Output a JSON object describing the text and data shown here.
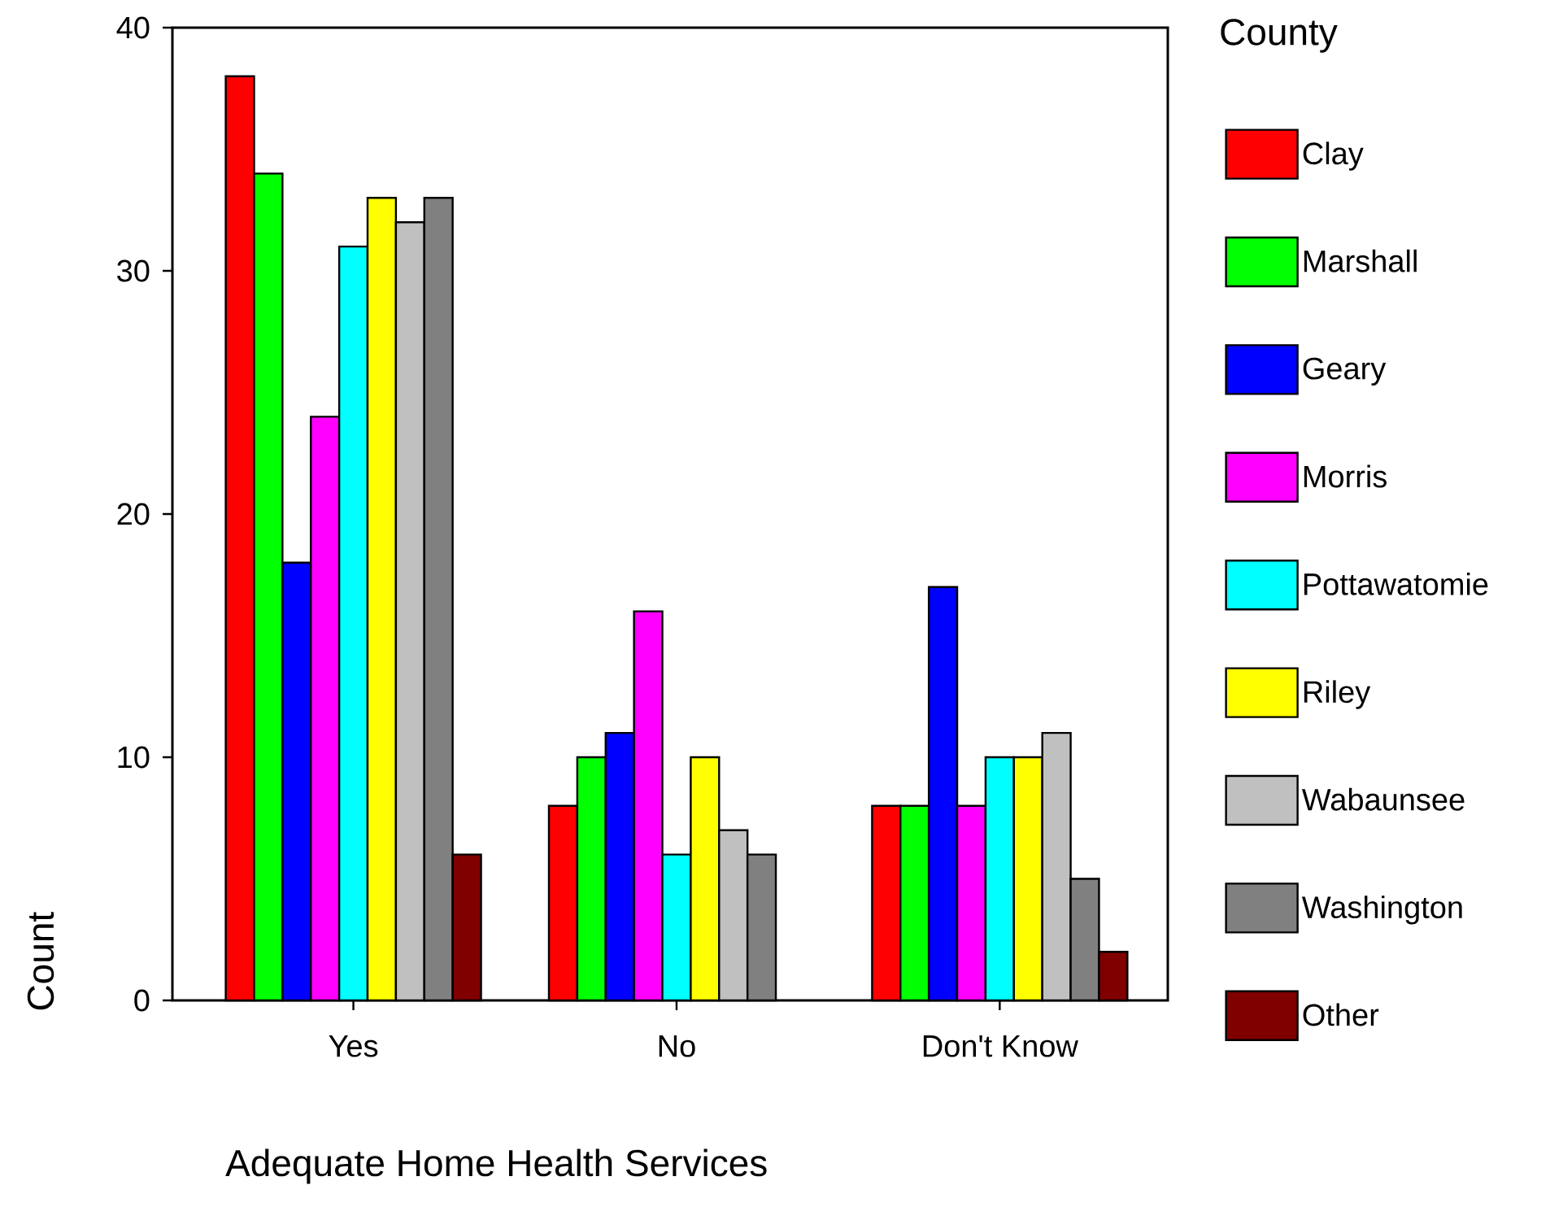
{
  "chart_data": {
    "type": "bar",
    "xlabel": "Adequate Home Health Services",
    "ylabel": "Count",
    "legend_title": "County",
    "categories": [
      "Yes",
      "No",
      "Don't Know"
    ],
    "series": [
      {
        "name": "Clay",
        "color": "#ff0000",
        "values": [
          38,
          8,
          8
        ]
      },
      {
        "name": "Marshall",
        "color": "#00ff00",
        "values": [
          34,
          10,
          8
        ]
      },
      {
        "name": "Geary",
        "color": "#0000ff",
        "values": [
          18,
          11,
          17
        ]
      },
      {
        "name": "Morris",
        "color": "#ff00ff",
        "values": [
          24,
          16,
          8
        ]
      },
      {
        "name": "Pottawatomie",
        "color": "#00ffff",
        "values": [
          31,
          6,
          10
        ]
      },
      {
        "name": "Riley",
        "color": "#ffff00",
        "values": [
          33,
          10,
          10
        ]
      },
      {
        "name": "Wabaunsee",
        "color": "#c0c0c0",
        "values": [
          32,
          7,
          11
        ]
      },
      {
        "name": "Washington",
        "color": "#808080",
        "values": [
          33,
          6,
          5
        ]
      },
      {
        "name": "Other",
        "color": "#800000",
        "values": [
          6,
          null,
          2
        ]
      }
    ],
    "ylim": [
      0,
      40
    ],
    "yticks": [
      0,
      10,
      20,
      30,
      40
    ],
    "legend": "right"
  }
}
